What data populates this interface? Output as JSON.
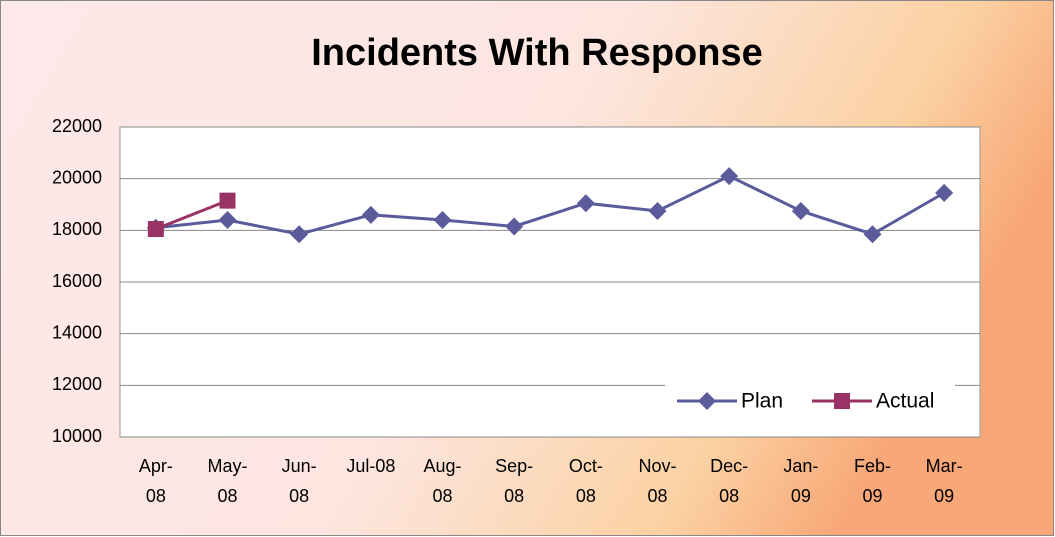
{
  "chart_data": {
    "type": "line",
    "title": "Incidents With Response",
    "categories": [
      "Apr-08",
      "May-08",
      "Jun-08",
      "Jul-08",
      "Aug-08",
      "Sep-08",
      "Oct-08",
      "Nov-08",
      "Dec-08",
      "Jan-09",
      "Feb-09",
      "Mar-09"
    ],
    "series": [
      {
        "name": "Plan",
        "color": "#5b5b9b",
        "values": [
          18100,
          18400,
          17850,
          18600,
          18400,
          18150,
          19050,
          18750,
          20100,
          18750,
          17850,
          19450
        ]
      },
      {
        "name": "Actual",
        "color": "#993366",
        "values": [
          18050,
          19150,
          null,
          null,
          null,
          null,
          null,
          null,
          null,
          null,
          null,
          null
        ]
      }
    ],
    "ylim": [
      10000,
      22000
    ],
    "yticks": [
      10000,
      12000,
      14000,
      16000,
      18000,
      20000,
      22000
    ],
    "grid": true,
    "legend": "lower right"
  }
}
